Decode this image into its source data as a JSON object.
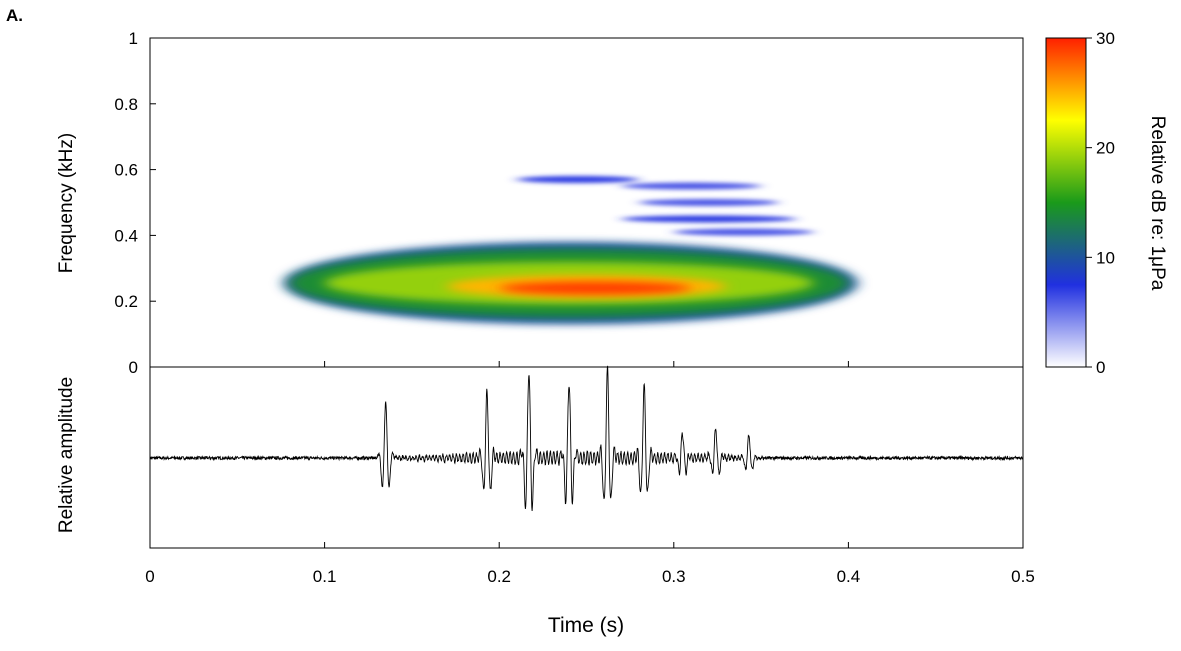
{
  "panel_label": "A.",
  "chart_data": [
    {
      "type": "heatmap",
      "name": "spectrogram",
      "ylabel": "Frequency (kHz)",
      "ylim": [
        0,
        1
      ],
      "yticks": [
        "0",
        "0.2",
        "0.4",
        "0.6",
        "0.8",
        "1"
      ],
      "xlim": [
        0,
        0.5
      ],
      "colorbar": {
        "label": "Relative dB re: 1μPa",
        "range": [
          0,
          30
        ],
        "ticks": [
          "0",
          "10",
          "20",
          "30"
        ],
        "colors": [
          "#ffffff",
          "#2030e0",
          "#1a9a1a",
          "#ffff00",
          "#ff2000"
        ]
      },
      "bands": [
        {
          "t_start": 0.077,
          "t_end": 0.405,
          "f_low": 0.13,
          "f_high": 0.38,
          "db": 10
        },
        {
          "t_start": 0.08,
          "t_end": 0.4,
          "f_low": 0.15,
          "f_high": 0.36,
          "db": 14
        },
        {
          "t_start": 0.1,
          "t_end": 0.38,
          "f_low": 0.19,
          "f_high": 0.32,
          "db": 19
        },
        {
          "t_start": 0.17,
          "t_end": 0.33,
          "f_low": 0.21,
          "f_high": 0.28,
          "db": 25
        },
        {
          "t_start": 0.2,
          "t_end": 0.31,
          "f_low": 0.22,
          "f_high": 0.26,
          "db": 29
        }
      ],
      "harmonics": [
        {
          "t_start": 0.21,
          "t_end": 0.28,
          "f": 0.57,
          "db": 7
        },
        {
          "t_start": 0.27,
          "t_end": 0.35,
          "f": 0.55,
          "db": 6
        },
        {
          "t_start": 0.28,
          "t_end": 0.36,
          "f": 0.5,
          "db": 6
        },
        {
          "t_start": 0.27,
          "t_end": 0.37,
          "f": 0.45,
          "db": 7
        },
        {
          "t_start": 0.3,
          "t_end": 0.38,
          "f": 0.41,
          "db": 6
        }
      ]
    },
    {
      "type": "line",
      "name": "waveform",
      "xlabel": "Time (s)",
      "ylabel": "Relative amplitude",
      "xlim": [
        0,
        0.5
      ],
      "xticks": [
        "0",
        "0.1",
        "0.2",
        "0.3",
        "0.4",
        "0.5"
      ],
      "pulses": [
        {
          "t": 0.135,
          "amp": 0.62
        },
        {
          "t": 0.193,
          "amp": 0.72
        },
        {
          "t": 0.217,
          "amp": 0.98
        },
        {
          "t": 0.24,
          "amp": 0.86
        },
        {
          "t": 0.262,
          "amp": 0.96
        },
        {
          "t": 0.283,
          "amp": 0.78
        },
        {
          "t": 0.305,
          "amp": 0.28
        },
        {
          "t": 0.324,
          "amp": 0.32
        },
        {
          "t": 0.343,
          "amp": 0.25
        }
      ]
    }
  ]
}
